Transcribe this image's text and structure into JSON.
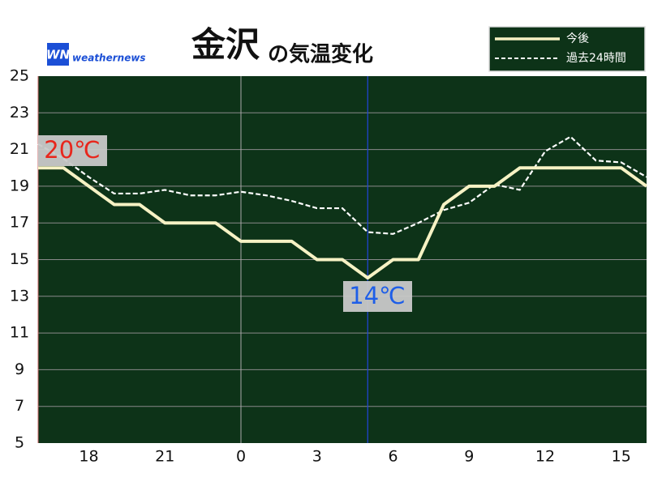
{
  "chart_data": {
    "type": "line",
    "title": "金沢",
    "subtitle": "の気温変化",
    "logo_mark": "WN",
    "logo": "weathernews",
    "categories": [
      null,
      null,
      "18",
      null,
      null,
      "21",
      null,
      null,
      "0",
      null,
      null,
      "3",
      null,
      null,
      "6",
      null,
      null,
      "9",
      null,
      null,
      "12",
      null,
      null,
      "15",
      null
    ],
    "series": [
      {
        "name": "今後",
        "color": "#f6f2c4",
        "dashed": false,
        "values": [
          20,
          20,
          19,
          18,
          18,
          17,
          17,
          17,
          16,
          16,
          16,
          15,
          15,
          14,
          15,
          15,
          18,
          19,
          19,
          20,
          20,
          20,
          20,
          20,
          19
        ]
      },
      {
        "name": "過去24時間",
        "color": "#ffffff",
        "dashed": true,
        "values": [
          21.3,
          20.5,
          19.5,
          18.6,
          18.6,
          18.8,
          18.5,
          18.5,
          18.7,
          18.5,
          18.2,
          17.8,
          17.8,
          16.5,
          16.4,
          17.0,
          17.7,
          18.1,
          19.1,
          18.8,
          20.9,
          21.7,
          20.4,
          20.3,
          19.5
        ]
      }
    ],
    "annotations": [
      {
        "text": "20℃",
        "color": "#e8261c"
      },
      {
        "text": "14℃",
        "color": "#1d5ee8"
      }
    ],
    "ylim": [
      5,
      25
    ],
    "yticks": [
      5,
      7,
      9,
      11,
      13,
      15,
      17,
      19,
      21,
      23,
      25
    ],
    "grid": true,
    "background": "#0d3318",
    "legend": "upper right"
  }
}
